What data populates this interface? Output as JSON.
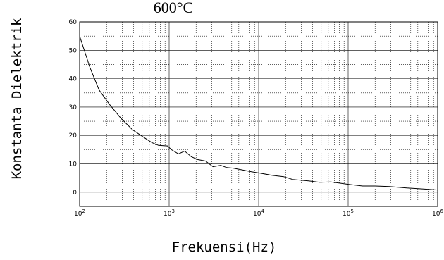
{
  "chart_data": {
    "type": "line",
    "title": "600°C",
    "xlabel": "Frekuensi(Hz)",
    "ylabel": "Konstanta Dielektrik",
    "x_scale": "log",
    "xlim": [
      100,
      1000000
    ],
    "ylim": [
      -5,
      60
    ],
    "x_ticks": [
      {
        "value": 100,
        "base": "10",
        "exp": "2"
      },
      {
        "value": 1000,
        "base": "10",
        "exp": "3"
      },
      {
        "value": 10000,
        "base": "10",
        "exp": "4"
      },
      {
        "value": 100000,
        "base": "10",
        "exp": "5"
      },
      {
        "value": 1000000,
        "base": "10",
        "exp": "6"
      }
    ],
    "y_ticks": [
      0,
      10,
      20,
      30,
      40,
      50,
      60
    ],
    "grid": true,
    "grid_style": "dotted",
    "line_color": "#000000",
    "series": [
      {
        "x": [
          100,
          130,
          165,
          215,
          290,
          390,
          510,
          640,
          760,
          960,
          1060,
          1270,
          1490,
          1770,
          2100,
          2550,
          3090,
          3770,
          4400,
          5200,
          6700,
          8300,
          10000,
          14000,
          19000,
          24000,
          36000,
          48000,
          64000,
          80000,
          100000,
          145000,
          200000,
          290000,
          450000,
          650000,
          1000000
        ],
        "y": [
          55,
          44,
          36,
          31,
          26,
          22,
          19.5,
          17.5,
          16.5,
          16.3,
          15,
          13.5,
          14.5,
          12.5,
          11.5,
          11,
          9,
          9.5,
          8.7,
          8.5,
          7.8,
          7.2,
          6.8,
          6,
          5.5,
          4.5,
          4,
          3.5,
          3.6,
          3.2,
          2.8,
          2.2,
          2.2,
          2,
          1.5,
          1.2,
          0.8
        ]
      }
    ]
  }
}
